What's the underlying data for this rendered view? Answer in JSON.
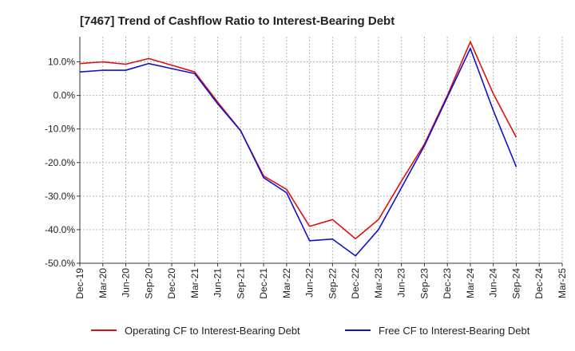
{
  "chart_data": {
    "type": "line",
    "title": "[7467]  Trend of Cashflow Ratio to Interest-Bearing Debt",
    "xlabel": "",
    "ylabel": "",
    "ylim": [
      -50,
      17.5
    ],
    "yticks": [
      {
        "value": 10,
        "label": "10.0%"
      },
      {
        "value": 0,
        "label": "0.0%"
      },
      {
        "value": -10,
        "label": "-10.0%"
      },
      {
        "value": -20,
        "label": "-20.0%"
      },
      {
        "value": -30,
        "label": "-30.0%"
      },
      {
        "value": -40,
        "label": "-40.0%"
      },
      {
        "value": -50,
        "label": "-50.0%"
      }
    ],
    "categories": [
      "Dec-19",
      "Mar-20",
      "Jun-20",
      "Sep-20",
      "Dec-20",
      "Mar-21",
      "Jun-21",
      "Sep-21",
      "Dec-21",
      "Mar-22",
      "Jun-22",
      "Sep-22",
      "Dec-22",
      "Mar-23",
      "Jun-23",
      "Sep-23",
      "Dec-23",
      "Mar-24",
      "Jun-24",
      "Sep-24",
      "Dec-24",
      "Mar-25"
    ],
    "grid": true,
    "legend_position": "bottom",
    "series": [
      {
        "name": "Operating CF to Interest-Bearing Debt",
        "color": "#dd1111",
        "values": [
          9.5,
          10.0,
          9.3,
          11.0,
          9.0,
          7.0,
          -2.0,
          -10.5,
          -24.0,
          -28.0,
          -39.0,
          -37.0,
          -42.7,
          -37.0,
          -25.5,
          -14.5,
          0.0,
          16.0,
          0.5,
          -12.5,
          null,
          null
        ]
      },
      {
        "name": "Free CF to Interest-Bearing Debt",
        "color": "#1111cc",
        "values": [
          7.0,
          7.5,
          7.5,
          9.5,
          8.0,
          6.5,
          -2.5,
          -10.5,
          -24.5,
          -29.0,
          -43.3,
          -42.8,
          -47.8,
          -40.0,
          -27.5,
          -15.0,
          -0.5,
          14.0,
          -4.5,
          -21.3,
          null,
          null
        ]
      }
    ]
  }
}
